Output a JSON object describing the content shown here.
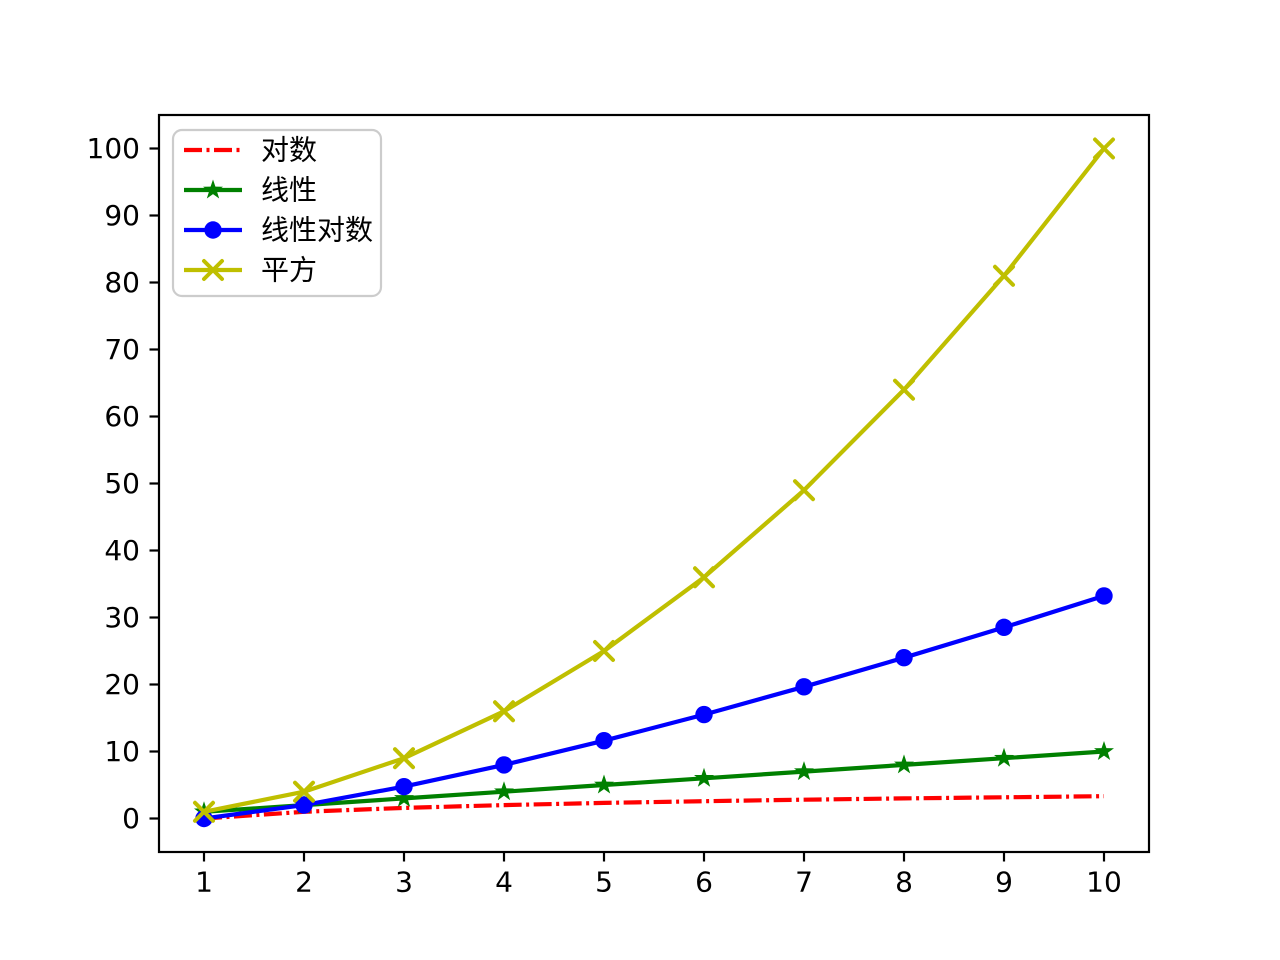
{
  "figure": {
    "background": "#ffffff",
    "axis_color": "#000000",
    "tick_label_color": "#000000"
  },
  "chart_data": {
    "type": "line",
    "title": "",
    "xlabel": "",
    "ylabel": "",
    "grid": false,
    "x": [
      1,
      2,
      3,
      4,
      5,
      6,
      7,
      8,
      9,
      10
    ],
    "series": [
      {
        "name": "对数",
        "color": "#ff0000",
        "linestyle": "dashdot",
        "marker": "none",
        "values": [
          0,
          1,
          1.585,
          2,
          2.322,
          2.585,
          2.807,
          3,
          3.17,
          3.322
        ]
      },
      {
        "name": "线性",
        "color": "#008000",
        "linestyle": "solid",
        "marker": "star",
        "values": [
          1,
          2,
          3,
          4,
          5,
          6,
          7,
          8,
          9,
          10
        ]
      },
      {
        "name": "线性对数",
        "color": "#0000ff",
        "linestyle": "solid",
        "marker": "circle",
        "values": [
          0,
          2,
          4.755,
          8,
          11.61,
          15.51,
          19.651,
          24,
          28.529,
          33.219
        ]
      },
      {
        "name": "平方",
        "color": "#bfbf00",
        "linestyle": "solid",
        "marker": "x",
        "values": [
          1,
          4,
          9,
          16,
          25,
          36,
          49,
          64,
          81,
          100
        ]
      }
    ],
    "xtick_labels": [
      "1",
      "2",
      "3",
      "4",
      "5",
      "6",
      "7",
      "8",
      "9",
      "10"
    ],
    "xtick_values": [
      1,
      2,
      3,
      4,
      5,
      6,
      7,
      8,
      9,
      10
    ],
    "ytick_labels": [
      "0",
      "10",
      "20",
      "30",
      "40",
      "50",
      "60",
      "70",
      "80",
      "90",
      "100"
    ],
    "ytick_values": [
      0,
      10,
      20,
      30,
      40,
      50,
      60,
      70,
      80,
      90,
      100
    ],
    "xlim": [
      0.55,
      10.45
    ],
    "ylim": [
      -5,
      105
    ],
    "legend_position": "upper left",
    "legend": {
      "border_color": "#cccccc",
      "background": "#ffffff"
    }
  }
}
